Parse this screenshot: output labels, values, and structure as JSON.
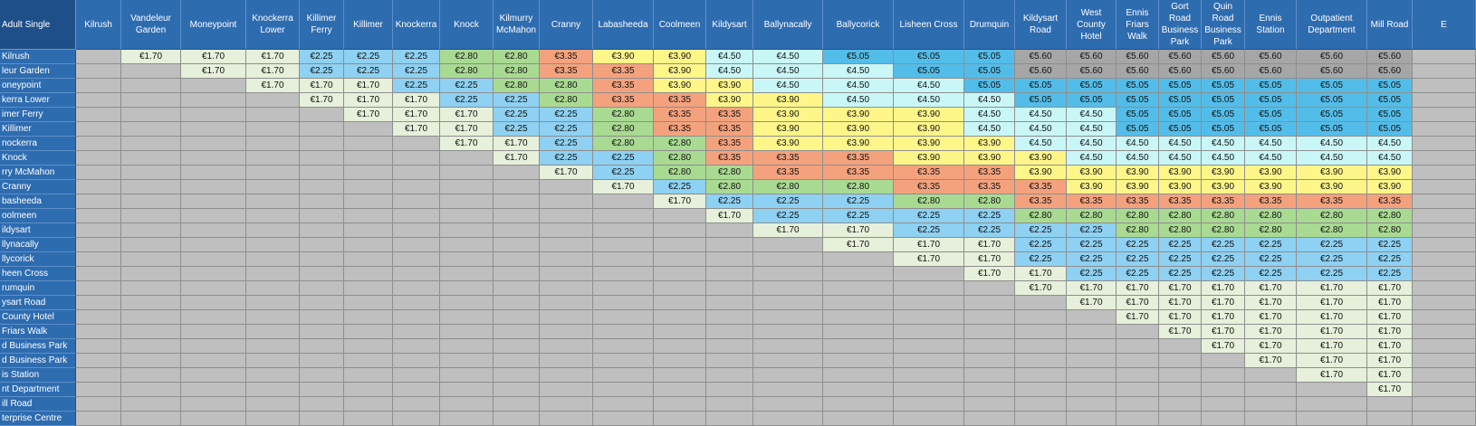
{
  "corner_label": "Adult Single",
  "columns": [
    "Kilrush",
    "Vandeleur Garden",
    "Moneypoint",
    "Knockerra Lower",
    "Killimer Ferry",
    "Killimer",
    "Knockerra",
    "Knock",
    "Kilmurry McMahon",
    "Cranny",
    "Labasheeda",
    "Coolmeen",
    "Kildysart",
    "Ballynacally",
    "Ballycorick",
    "Lisheen Cross",
    "Drumquin",
    "Kildysart Road",
    "West County Hotel",
    "Ennis Friars Walk",
    "Gort Road Business Park",
    "Quin Road Business Park",
    "Ennis Station",
    "Outpatient Department",
    "Mill Road",
    "E"
  ],
  "row_labels": [
    "Kilrush",
    "leur Garden",
    "oneypoint",
    "kerra Lower",
    "imer Ferry",
    "Killimer",
    "nockerra",
    "Knock",
    "rry McMahon",
    "Cranny",
    "basheeda",
    "oolmeen",
    "ildysart",
    "llynacally",
    "llycorick",
    "heen Cross",
    "rumquin",
    "ysart Road",
    "County Hotel",
    "Friars Walk",
    "d Business Park",
    "d Business Park",
    "is Station",
    "nt Department",
    "ill Road",
    "terprise Centre"
  ],
  "fare_colors": {
    "€1.70": "#e6f0da",
    "€2.25": "#8ed1f2",
    "€2.80": "#a9da92",
    "€3.35": "#f4a27d",
    "€3.90": "#fff68a",
    "€4.50": "#c9f7f7",
    "€5.05": "#53bde9",
    "€5.60": "#a6a6a6"
  },
  "rows": [
    [
      "",
      "€1.70",
      "€1.70",
      "€1.70",
      "€2.25",
      "€2.25",
      "€2.25",
      "€2.80",
      "€2.80",
      "€3.35",
      "€3.90",
      "€3.90",
      "€4.50",
      "€4.50",
      "€5.05",
      "€5.05",
      "€5.05",
      "€5.60",
      "€5.60",
      "€5.60",
      "€5.60",
      "€5.60",
      "€5.60",
      "€5.60",
      "€5.60",
      ""
    ],
    [
      "",
      "",
      "€1.70",
      "€1.70",
      "€2.25",
      "€2.25",
      "€2.25",
      "€2.80",
      "€2.80",
      "€3.35",
      "€3.35",
      "€3.90",
      "€4.50",
      "€4.50",
      "€4.50",
      "€5.05",
      "€5.05",
      "€5.60",
      "€5.60",
      "€5.60",
      "€5.60",
      "€5.60",
      "€5.60",
      "€5.60",
      "€5.60",
      ""
    ],
    [
      "",
      "",
      "",
      "€1.70",
      "€1.70",
      "€1.70",
      "€2.25",
      "€2.25",
      "€2.80",
      "€2.80",
      "€3.35",
      "€3.90",
      "€3.90",
      "€4.50",
      "€4.50",
      "€4.50",
      "€5.05",
      "€5.05",
      "€5.05",
      "€5.05",
      "€5.05",
      "€5.05",
      "€5.05",
      "€5.05",
      "€5.05",
      ""
    ],
    [
      "",
      "",
      "",
      "",
      "€1.70",
      "€1.70",
      "€1.70",
      "€2.25",
      "€2.25",
      "€2.80",
      "€3.35",
      "€3.35",
      "€3.90",
      "€3.90",
      "€4.50",
      "€4.50",
      "€4.50",
      "€5.05",
      "€5.05",
      "€5.05",
      "€5.05",
      "€5.05",
      "€5.05",
      "€5.05",
      "€5.05",
      ""
    ],
    [
      "",
      "",
      "",
      "",
      "",
      "€1.70",
      "€1.70",
      "€1.70",
      "€2.25",
      "€2.25",
      "€2.80",
      "€3.35",
      "€3.35",
      "€3.90",
      "€3.90",
      "€3.90",
      "€4.50",
      "€4.50",
      "€4.50",
      "€5.05",
      "€5.05",
      "€5.05",
      "€5.05",
      "€5.05",
      "€5.05",
      ""
    ],
    [
      "",
      "",
      "",
      "",
      "",
      "",
      "€1.70",
      "€1.70",
      "€2.25",
      "€2.25",
      "€2.80",
      "€3.35",
      "€3.35",
      "€3.90",
      "€3.90",
      "€3.90",
      "€4.50",
      "€4.50",
      "€4.50",
      "€5.05",
      "€5.05",
      "€5.05",
      "€5.05",
      "€5.05",
      "€5.05",
      ""
    ],
    [
      "",
      "",
      "",
      "",
      "",
      "",
      "",
      "€1.70",
      "€1.70",
      "€2.25",
      "€2.80",
      "€2.80",
      "€3.35",
      "€3.90",
      "€3.90",
      "€3.90",
      "€3.90",
      "€4.50",
      "€4.50",
      "€4.50",
      "€4.50",
      "€4.50",
      "€4.50",
      "€4.50",
      "€4.50",
      ""
    ],
    [
      "",
      "",
      "",
      "",
      "",
      "",
      "",
      "",
      "€1.70",
      "€2.25",
      "€2.25",
      "€2.80",
      "€3.35",
      "€3.35",
      "€3.35",
      "€3.90",
      "€3.90",
      "€3.90",
      "€4.50",
      "€4.50",
      "€4.50",
      "€4.50",
      "€4.50",
      "€4.50",
      "€4.50",
      ""
    ],
    [
      "",
      "",
      "",
      "",
      "",
      "",
      "",
      "",
      "",
      "€1.70",
      "€2.25",
      "€2.80",
      "€2.80",
      "€3.35",
      "€3.35",
      "€3.35",
      "€3.35",
      "€3.90",
      "€3.90",
      "€3.90",
      "€3.90",
      "€3.90",
      "€3.90",
      "€3.90",
      "€3.90",
      ""
    ],
    [
      "",
      "",
      "",
      "",
      "",
      "",
      "",
      "",
      "",
      "",
      "€1.70",
      "€2.25",
      "€2.80",
      "€2.80",
      "€2.80",
      "€3.35",
      "€3.35",
      "€3.35",
      "€3.90",
      "€3.90",
      "€3.90",
      "€3.90",
      "€3.90",
      "€3.90",
      "€3.90",
      ""
    ],
    [
      "",
      "",
      "",
      "",
      "",
      "",
      "",
      "",
      "",
      "",
      "",
      "€1.70",
      "€2.25",
      "€2.25",
      "€2.25",
      "€2.80",
      "€2.80",
      "€3.35",
      "€3.35",
      "€3.35",
      "€3.35",
      "€3.35",
      "€3.35",
      "€3.35",
      "€3.35",
      ""
    ],
    [
      "",
      "",
      "",
      "",
      "",
      "",
      "",
      "",
      "",
      "",
      "",
      "",
      "€1.70",
      "€2.25",
      "€2.25",
      "€2.25",
      "€2.25",
      "€2.80",
      "€2.80",
      "€2.80",
      "€2.80",
      "€2.80",
      "€2.80",
      "€2.80",
      "€2.80",
      ""
    ],
    [
      "",
      "",
      "",
      "",
      "",
      "",
      "",
      "",
      "",
      "",
      "",
      "",
      "",
      "€1.70",
      "€1.70",
      "€2.25",
      "€2.25",
      "€2.25",
      "€2.25",
      "€2.80",
      "€2.80",
      "€2.80",
      "€2.80",
      "€2.80",
      "€2.80",
      ""
    ],
    [
      "",
      "",
      "",
      "",
      "",
      "",
      "",
      "",
      "",
      "",
      "",
      "",
      "",
      "",
      "€1.70",
      "€1.70",
      "€1.70",
      "€2.25",
      "€2.25",
      "€2.25",
      "€2.25",
      "€2.25",
      "€2.25",
      "€2.25",
      "€2.25",
      ""
    ],
    [
      "",
      "",
      "",
      "",
      "",
      "",
      "",
      "",
      "",
      "",
      "",
      "",
      "",
      "",
      "",
      "€1.70",
      "€1.70",
      "€2.25",
      "€2.25",
      "€2.25",
      "€2.25",
      "€2.25",
      "€2.25",
      "€2.25",
      "€2.25",
      ""
    ],
    [
      "",
      "",
      "",
      "",
      "",
      "",
      "",
      "",
      "",
      "",
      "",
      "",
      "",
      "",
      "",
      "",
      "€1.70",
      "€1.70",
      "€2.25",
      "€2.25",
      "€2.25",
      "€2.25",
      "€2.25",
      "€2.25",
      "€2.25",
      ""
    ],
    [
      "",
      "",
      "",
      "",
      "",
      "",
      "",
      "",
      "",
      "",
      "",
      "",
      "",
      "",
      "",
      "",
      "",
      "€1.70",
      "€1.70",
      "€1.70",
      "€1.70",
      "€1.70",
      "€1.70",
      "€1.70",
      "€1.70",
      ""
    ],
    [
      "",
      "",
      "",
      "",
      "",
      "",
      "",
      "",
      "",
      "",
      "",
      "",
      "",
      "",
      "",
      "",
      "",
      "",
      "€1.70",
      "€1.70",
      "€1.70",
      "€1.70",
      "€1.70",
      "€1.70",
      "€1.70",
      ""
    ],
    [
      "",
      "",
      "",
      "",
      "",
      "",
      "",
      "",
      "",
      "",
      "",
      "",
      "",
      "",
      "",
      "",
      "",
      "",
      "",
      "€1.70",
      "€1.70",
      "€1.70",
      "€1.70",
      "€1.70",
      "€1.70",
      ""
    ],
    [
      "",
      "",
      "",
      "",
      "",
      "",
      "",
      "",
      "",
      "",
      "",
      "",
      "",
      "",
      "",
      "",
      "",
      "",
      "",
      "",
      "€1.70",
      "€1.70",
      "€1.70",
      "€1.70",
      "€1.70",
      ""
    ],
    [
      "",
      "",
      "",
      "",
      "",
      "",
      "",
      "",
      "",
      "",
      "",
      "",
      "",
      "",
      "",
      "",
      "",
      "",
      "",
      "",
      "",
      "€1.70",
      "€1.70",
      "€1.70",
      "€1.70",
      ""
    ],
    [
      "",
      "",
      "",
      "",
      "",
      "",
      "",
      "",
      "",
      "",
      "",
      "",
      "",
      "",
      "",
      "",
      "",
      "",
      "",
      "",
      "",
      "",
      "€1.70",
      "€1.70",
      "€1.70",
      ""
    ],
    [
      "",
      "",
      "",
      "",
      "",
      "",
      "",
      "",
      "",
      "",
      "",
      "",
      "",
      "",
      "",
      "",
      "",
      "",
      "",
      "",
      "",
      "",
      "",
      "€1.70",
      "€1.70",
      ""
    ],
    [
      "",
      "",
      "",
      "",
      "",
      "",
      "",
      "",
      "",
      "",
      "",
      "",
      "",
      "",
      "",
      "",
      "",
      "",
      "",
      "",
      "",
      "",
      "",
      "",
      "€1.70",
      ""
    ],
    [
      "",
      "",
      "",
      "",
      "",
      "",
      "",
      "",
      "",
      "",
      "",
      "",
      "",
      "",
      "",
      "",
      "",
      "",
      "",
      "",
      "",
      "",
      "",
      "",
      "",
      ""
    ],
    [
      "",
      "",
      "",
      "",
      "",
      "",
      "",
      "",
      "",
      "",
      "",
      "",
      "",
      "",
      "",
      "",
      "",
      "",
      "",
      "",
      "",
      "",
      "",
      "",
      "",
      ""
    ]
  ]
}
